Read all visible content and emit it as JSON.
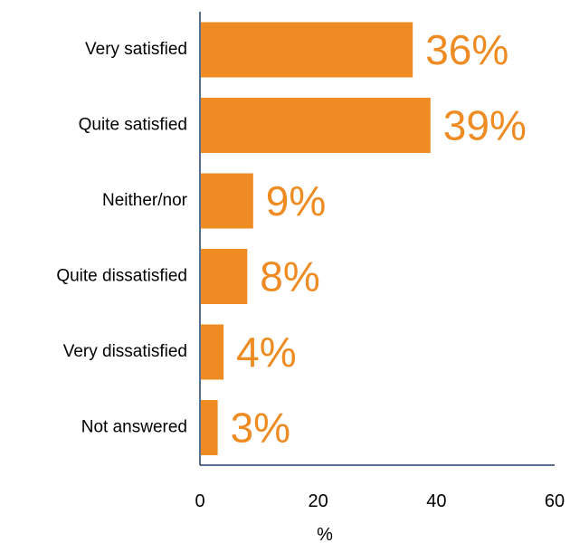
{
  "chart_data": {
    "type": "bar",
    "orientation": "horizontal",
    "categories": [
      "Very satisfied",
      "Quite satisfied",
      "Neither/nor",
      "Quite dissatisfied",
      "Very dissatisfied",
      "Not answered"
    ],
    "values": [
      36,
      39,
      9,
      8,
      4,
      3
    ],
    "data_labels": [
      "36%",
      "39%",
      "9%",
      "8%",
      "4%",
      "3%"
    ],
    "xlabel": "%",
    "xlim": [
      0,
      60
    ],
    "xticks": [
      0,
      20,
      40,
      60
    ],
    "grid": false,
    "legend": "none",
    "bar_color": "#EE8B22",
    "label_color": "#EE8B22",
    "axis_color": "#1F3F6E"
  }
}
